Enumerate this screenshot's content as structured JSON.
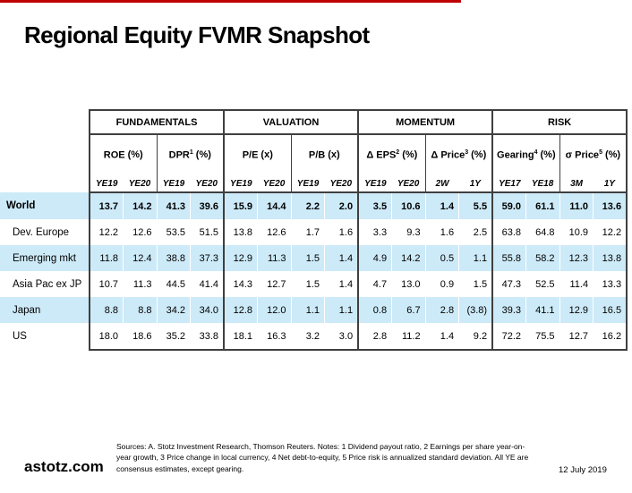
{
  "slide": {
    "title": "Regional Equity FVMR Snapshot",
    "accent_color": "#C00000",
    "highlight_color": "#CDEAF8",
    "border_color": "#3F3F3F"
  },
  "table": {
    "groups": [
      {
        "label": "FUNDAMENTALS",
        "metrics": [
          {
            "name": "ROE",
            "sup": "",
            "unit": "(%)",
            "periods": [
              "YE19",
              "YE20"
            ]
          },
          {
            "name": "DPR",
            "sup": "1",
            "unit": "(%)",
            "periods": [
              "YE19",
              "YE20"
            ]
          }
        ]
      },
      {
        "label": "VALUATION",
        "metrics": [
          {
            "name": "P/E",
            "sup": "",
            "unit": "(x)",
            "periods": [
              "YE19",
              "YE20"
            ]
          },
          {
            "name": "P/B",
            "sup": "",
            "unit": "(x)",
            "periods": [
              "YE19",
              "YE20"
            ]
          }
        ]
      },
      {
        "label": "MOMENTUM",
        "metrics": [
          {
            "name": "Δ EPS",
            "sup": "2",
            "unit": "(%)",
            "periods": [
              "YE19",
              "YE20"
            ]
          },
          {
            "name": "Δ Price",
            "sup": "3",
            "unit": "(%)",
            "periods": [
              "2W",
              "1Y"
            ]
          }
        ]
      },
      {
        "label": "RISK",
        "metrics": [
          {
            "name": "Gearing",
            "sup": "4",
            "unit": "(%)",
            "periods": [
              "YE17",
              "YE18"
            ]
          },
          {
            "name": "σ Price",
            "sup": "5",
            "unit": "(%)",
            "periods": [
              "3M",
              "1Y"
            ]
          }
        ]
      }
    ],
    "rows": [
      {
        "label": "World",
        "bold": true,
        "highlight": true,
        "values": [
          "13.7",
          "14.2",
          "41.3",
          "39.6",
          "15.9",
          "14.4",
          "2.2",
          "2.0",
          "3.5",
          "10.6",
          "1.4",
          "5.5",
          "59.0",
          "61.1",
          "11.0",
          "13.6"
        ]
      },
      {
        "label": "Dev. Europe",
        "bold": false,
        "highlight": false,
        "values": [
          "12.2",
          "12.6",
          "53.5",
          "51.5",
          "13.8",
          "12.6",
          "1.7",
          "1.6",
          "3.3",
          "9.3",
          "1.6",
          "2.5",
          "63.8",
          "64.8",
          "10.9",
          "12.2"
        ]
      },
      {
        "label": "Emerging mkt",
        "bold": false,
        "highlight": true,
        "values": [
          "11.8",
          "12.4",
          "38.8",
          "37.3",
          "12.9",
          "11.3",
          "1.5",
          "1.4",
          "4.9",
          "14.2",
          "0.5",
          "1.1",
          "55.8",
          "58.2",
          "12.3",
          "13.8"
        ]
      },
      {
        "label": "Asia Pac ex JP",
        "bold": false,
        "highlight": false,
        "values": [
          "10.7",
          "11.3",
          "44.5",
          "41.4",
          "14.3",
          "12.7",
          "1.5",
          "1.4",
          "4.7",
          "13.0",
          "0.9",
          "1.5",
          "47.3",
          "52.5",
          "11.4",
          "13.3"
        ]
      },
      {
        "label": "Japan",
        "bold": false,
        "highlight": true,
        "values": [
          "8.8",
          "8.8",
          "34.2",
          "34.0",
          "12.8",
          "12.0",
          "1.1",
          "1.1",
          "0.8",
          "6.7",
          "2.8",
          "(3.8)",
          "39.3",
          "41.1",
          "12.9",
          "16.5"
        ]
      },
      {
        "label": "US",
        "bold": false,
        "highlight": false,
        "values": [
          "18.0",
          "18.6",
          "35.2",
          "33.8",
          "18.1",
          "16.3",
          "3.2",
          "3.0",
          "2.8",
          "11.2",
          "1.4",
          "9.2",
          "72.2",
          "75.5",
          "12.7",
          "16.2"
        ]
      }
    ]
  },
  "footer": {
    "brand": "astotz.com",
    "notes": "Sources: A. Stotz Investment Research, Thomson Reuters. Notes: 1 Dividend payout ratio, 2 Earnings per share year-on-year growth, 3 Price change in local currency, 4 Net debt-to-equity, 5 Price risk is annualized standard deviation. All YE are consensus estimates, except gearing.",
    "date": "12 July 2019"
  }
}
